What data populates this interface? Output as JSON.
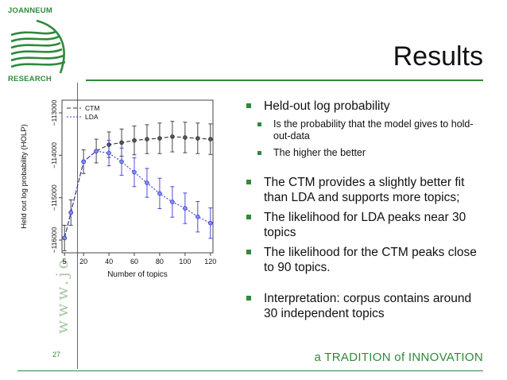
{
  "logo": {
    "top_text": "JOANNEUM",
    "bottom_text": "RESEARCH",
    "icon": "joanneum-waves-logo"
  },
  "slide": {
    "title": "Results",
    "page_number": "27",
    "tagline": "a TRADITION of INNOVATION",
    "watermark": "www.jo"
  },
  "bullets": {
    "heldout": "Held-out log probability",
    "sub1": "Is the probability that the model gives to hold-out-data",
    "sub2": "The higher the better",
    "ctm_better": "The CTM provides a slightly better fit than LDA and supports more topics;",
    "lda_peak": "The likelihood for LDA peaks near 30 topics",
    "ctm_peak": "The likelihood for the CTM peaks close to 90 topics.",
    "interp": "Interpretation: corpus contains around 30 independent topics"
  },
  "colors": {
    "brand_green": "#2f8a3b",
    "ctm": "#333333",
    "lda": "#3a3ad6"
  },
  "chart_data": {
    "type": "line",
    "xlabel": "Number of topics",
    "ylabel": "Held out log probability (HOLP)",
    "xlim": [
      3,
      122
    ],
    "ylim": [
      -116300,
      -112700
    ],
    "x_ticks": [
      5,
      20,
      40,
      60,
      80,
      100,
      120
    ],
    "y_ticks": [
      -116000,
      -115000,
      -114000,
      -113000
    ],
    "y_tick_labels": [
      "−116000",
      "−115000",
      "−114000",
      "−113000"
    ],
    "legend": "top-left",
    "grid": false,
    "x": [
      5,
      10,
      20,
      30,
      40,
      50,
      60,
      70,
      80,
      90,
      100,
      110,
      120
    ],
    "series": [
      {
        "name": "CTM",
        "style": "dashed",
        "values": [
          -115950,
          -115350,
          -114150,
          -113900,
          -113750,
          -113700,
          -113650,
          -113620,
          -113600,
          -113560,
          -113580,
          -113600,
          -113620
        ],
        "err": [
          300,
          300,
          280,
          280,
          300,
          320,
          340,
          340,
          360,
          360,
          360,
          360,
          360
        ]
      },
      {
        "name": "LDA",
        "style": "dotted",
        "values": [
          -115950,
          -115350,
          -114150,
          -113900,
          -113950,
          -114150,
          -114400,
          -114650,
          -114900,
          -115100,
          -115250,
          -115450,
          -115600
        ],
        "err": [
          300,
          300,
          280,
          280,
          300,
          320,
          340,
          340,
          360,
          360,
          360,
          360,
          360
        ]
      }
    ]
  }
}
